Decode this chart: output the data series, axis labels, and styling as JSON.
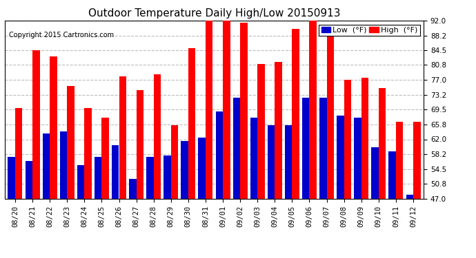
{
  "title": "Outdoor Temperature Daily High/Low 20150913",
  "copyright": "Copyright 2015 Cartronics.com",
  "legend_low": "Low  (°F)",
  "legend_high": "High  (°F)",
  "low_color": "#0000cc",
  "high_color": "#ff0000",
  "bg_color": "#ffffff",
  "plot_bg_color": "#ffffff",
  "grid_color": "#bbbbbb",
  "ylim": [
    47.0,
    92.0
  ],
  "yticks": [
    47.0,
    50.8,
    54.5,
    58.2,
    62.0,
    65.8,
    69.5,
    73.2,
    77.0,
    80.8,
    84.5,
    88.2,
    92.0
  ],
  "ytick_labels": [
    "47.0",
    "50.8",
    "54.5",
    "58.2",
    "62.0",
    "65.8",
    "69.5",
    "73.2",
    "77.0",
    "80.8",
    "84.5",
    "88.2",
    "92.0"
  ],
  "dates": [
    "08/20",
    "08/21",
    "08/22",
    "08/23",
    "08/24",
    "08/25",
    "08/26",
    "08/27",
    "08/28",
    "08/29",
    "08/30",
    "08/31",
    "09/01",
    "09/02",
    "09/03",
    "09/04",
    "09/05",
    "09/06",
    "09/07",
    "09/08",
    "09/09",
    "09/10",
    "09/11",
    "09/12"
  ],
  "highs": [
    70.0,
    84.5,
    83.0,
    75.5,
    70.0,
    67.5,
    78.0,
    74.5,
    78.5,
    65.5,
    85.0,
    92.0,
    92.0,
    91.5,
    81.0,
    81.5,
    90.0,
    92.0,
    89.0,
    77.0,
    77.5,
    75.0,
    66.5,
    66.5
  ],
  "lows": [
    57.5,
    56.5,
    63.5,
    64.0,
    55.5,
    57.5,
    60.5,
    52.0,
    57.5,
    58.0,
    61.5,
    62.5,
    69.0,
    72.5,
    67.5,
    65.5,
    65.5,
    72.5,
    72.5,
    68.0,
    67.5,
    60.0,
    59.0,
    48.0
  ],
  "bar_width": 0.42,
  "title_fontsize": 11,
  "tick_fontsize": 7.5,
  "copyright_fontsize": 7.0,
  "legend_fontsize": 8
}
